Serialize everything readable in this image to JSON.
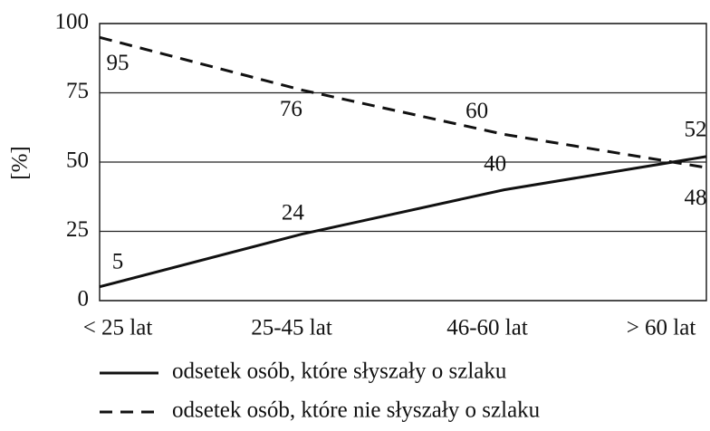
{
  "chart_data": {
    "type": "line",
    "ylabel": "[%]",
    "categories": [
      "< 25 lat",
      "25-45 lat",
      "46-60 lat",
      "> 60 lat"
    ],
    "series": [
      {
        "name": "odsetek osób, które słyszały o szlaku",
        "color": "#111111",
        "dashed": false,
        "values": [
          5,
          24,
          40,
          52
        ]
      },
      {
        "name": "odsetek osób, które nie słyszały o szlaku",
        "color": "#111111",
        "dashed": true,
        "values": [
          95,
          76,
          60,
          48
        ]
      }
    ],
    "ylim": [
      0,
      100
    ],
    "yticks": [
      0,
      25,
      50,
      75,
      100
    ],
    "grid": true,
    "legend": "bottom"
  }
}
